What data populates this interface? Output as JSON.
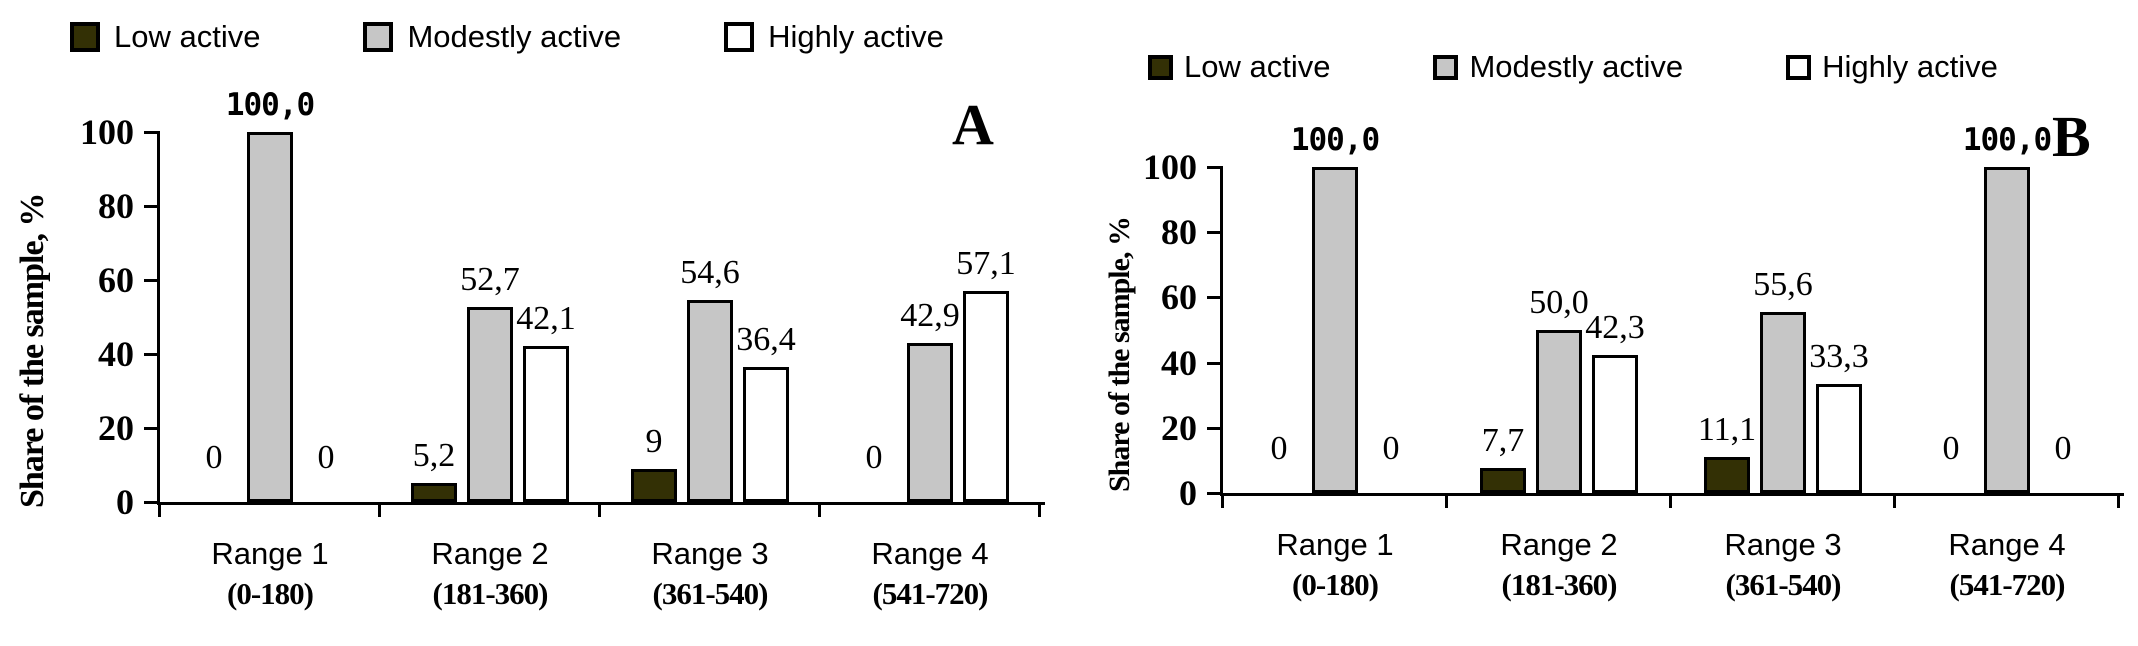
{
  "chart_data": [
    {
      "type": "bar",
      "panel_label": "A",
      "ylabel": "Share of the sample, %",
      "ylim": [
        0,
        100
      ],
      "yticks": [
        "100",
        "80",
        "60",
        "40",
        "20",
        "0"
      ],
      "grid": false,
      "legend_position": "top",
      "categories": [
        {
          "line1": "Range 1",
          "line2": "(0-180)"
        },
        {
          "line1": "Range 2",
          "line2": "(181-360)"
        },
        {
          "line1": "Range 3",
          "line2": "(361-540)"
        },
        {
          "line1": "Range 4",
          "line2": "(541-720)"
        }
      ],
      "series": [
        {
          "name": "Low active",
          "color": "#333005",
          "values": [
            0,
            5.2,
            9,
            0
          ],
          "labels": [
            "0",
            "5,2",
            "9",
            "0"
          ]
        },
        {
          "name": "Modestly active",
          "color": "#c6c6c6",
          "values": [
            100,
            52.7,
            54.6,
            42.9
          ],
          "labels": [
            "100,0",
            "52,7",
            "54,6",
            "42,9"
          ]
        },
        {
          "name": "Highly active",
          "color": "#ffffff",
          "values": [
            0,
            42.1,
            36.4,
            57.1
          ],
          "labels": [
            "0",
            "42,1",
            "36,4",
            "57,1"
          ]
        }
      ]
    },
    {
      "type": "bar",
      "panel_label": "B",
      "ylabel": "Share of the sample, %",
      "ylim": [
        0,
        100
      ],
      "yticks": [
        "100",
        "80",
        "60",
        "40",
        "20",
        "0"
      ],
      "grid": false,
      "legend_position": "top",
      "categories": [
        {
          "line1": "Range 1",
          "line2": "(0-180)"
        },
        {
          "line1": "Range 2",
          "line2": "(181-360)"
        },
        {
          "line1": "Range 3",
          "line2": "(361-540)"
        },
        {
          "line1": "Range 4",
          "line2": "(541-720)"
        }
      ],
      "series": [
        {
          "name": "Low active",
          "color": "#333005",
          "values": [
            0,
            7.7,
            11.1,
            0
          ],
          "labels": [
            "0",
            "7,7",
            "11,1",
            "0"
          ]
        },
        {
          "name": "Modestly active",
          "color": "#c6c6c6",
          "values": [
            100,
            50.0,
            55.6,
            100
          ],
          "labels": [
            "100,0",
            "50,0",
            "55,6",
            "100,0"
          ]
        },
        {
          "name": "Highly active",
          "color": "#ffffff",
          "values": [
            0,
            42.3,
            33.3,
            0
          ],
          "labels": [
            "0",
            "42,3",
            "33,3",
            "0"
          ]
        }
      ]
    }
  ]
}
